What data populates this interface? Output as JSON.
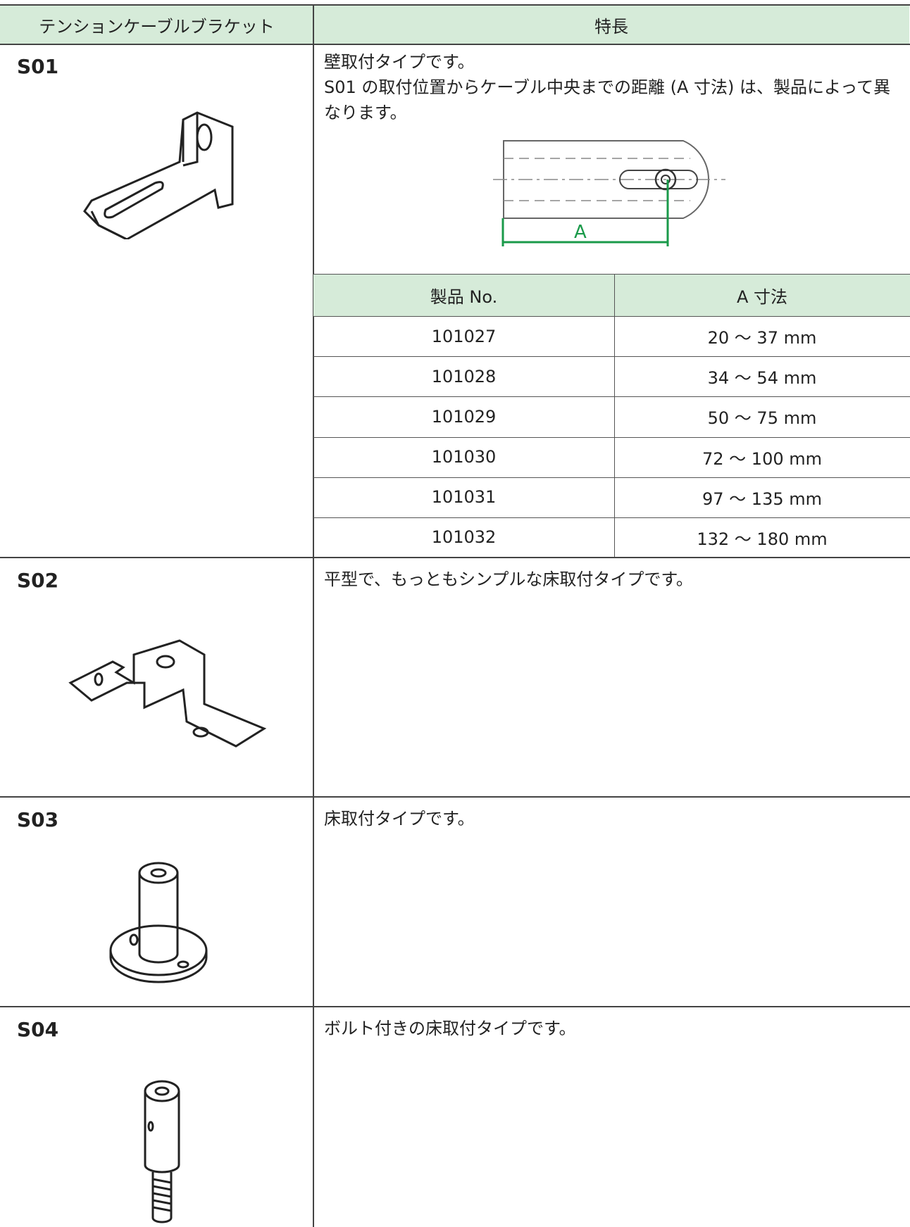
{
  "table": {
    "header": [
      "テンションケーブルブラケット",
      "特長"
    ],
    "rows": [
      {
        "name": "S01",
        "features": [
          "壁取付タイプです。",
          "S01 の取付位置からケーブル中央までの距離 (A 寸法) は、製品によって異なります。"
        ],
        "diagram_label": "A",
        "sub_table": {
          "header": [
            "製品 No.",
            "A 寸法"
          ],
          "rows": [
            [
              "101027",
              "20 ～ 37 mm"
            ],
            [
              "101028",
              "34 ～ 54 mm"
            ],
            [
              "101029",
              "50 ～ 75 mm"
            ],
            [
              "101030",
              "72 ～ 100 mm"
            ],
            [
              "101031",
              "97 ～ 135 mm"
            ],
            [
              "101032",
              "132 ～ 180 mm"
            ]
          ]
        }
      },
      {
        "name": "S02",
        "features": [
          "平型で、もっともシンプルな床取付タイプです。"
        ]
      },
      {
        "name": "S03",
        "features": [
          "床取付タイプです。"
        ]
      },
      {
        "name": "S04",
        "features": [
          "ボルト付きの床取付タイプです。"
        ]
      }
    ]
  }
}
